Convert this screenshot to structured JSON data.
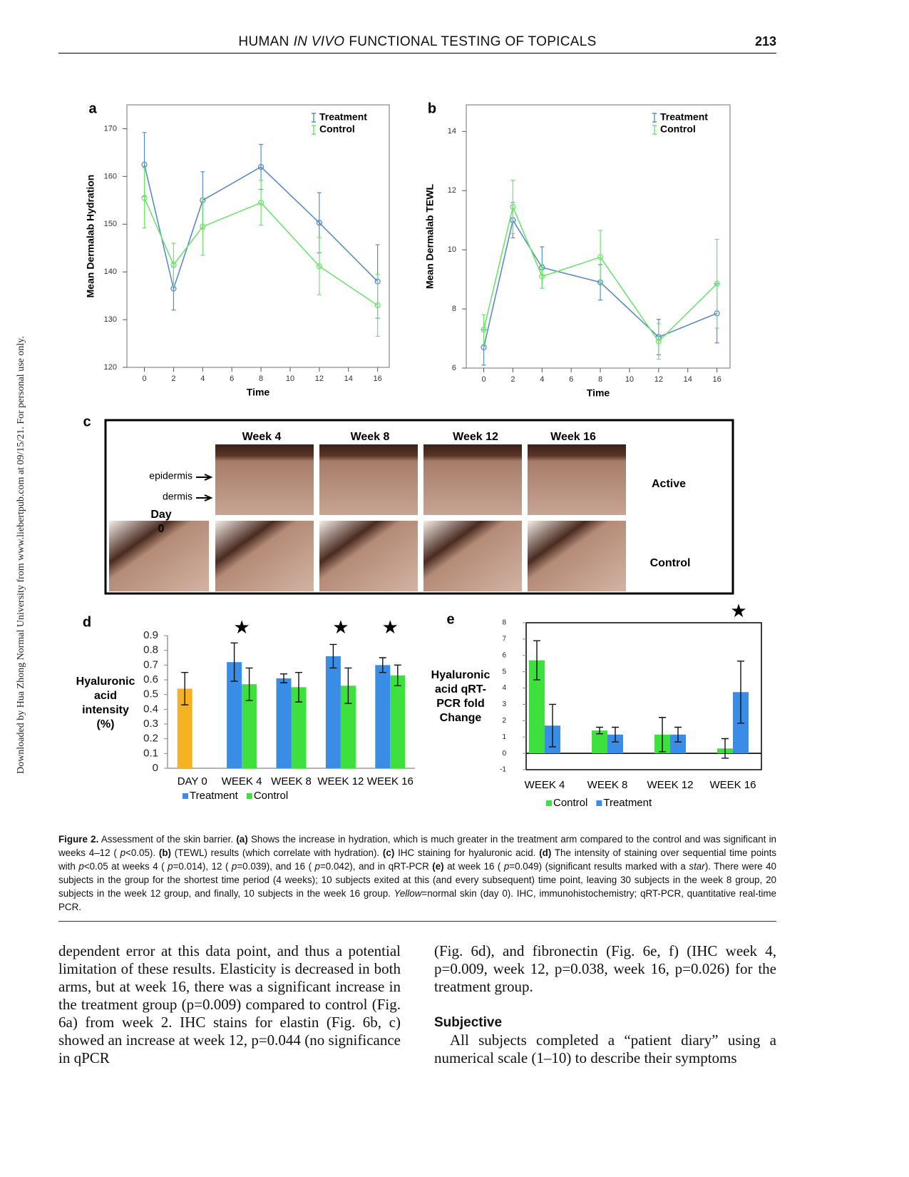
{
  "header": {
    "title_parts": [
      "HUMAN",
      "IN VIVO",
      "FUNCTIONAL TESTING OF TOPICALS"
    ],
    "page_number": "213"
  },
  "side_note": "Downloaded by Hua Zhong Normal University from www.liebertpub.com at 09/15/21. For personal use only.",
  "chart_data": [
    {
      "type": "line",
      "panel": "a",
      "xlabel": "Time",
      "ylabel": "Mean Dermalab Hydration",
      "x": [
        0,
        2,
        4,
        8,
        12,
        16
      ],
      "xlim": [
        -1.2,
        16.8
      ],
      "xticks": [
        0,
        2,
        4,
        6,
        8,
        10,
        12,
        14,
        16
      ],
      "ylim": [
        120,
        175
      ],
      "yticks": [
        120,
        130,
        140,
        150,
        160,
        170
      ],
      "legend": "upper right",
      "series": [
        {
          "name": "Treatment",
          "color": "#5b8cc6",
          "values": [
            162.5,
            136.5,
            155,
            162,
            150.3,
            138
          ],
          "errors": [
            6.7,
            4.5,
            6,
            4.7,
            6.3,
            7.7
          ]
        },
        {
          "name": "Control",
          "color": "#6ee36e",
          "values": [
            155.5,
            141.5,
            149.5,
            154.5,
            141.2,
            133
          ],
          "errors": [
            6.3,
            4.5,
            6,
            4.7,
            6,
            6.5
          ]
        }
      ]
    },
    {
      "type": "line",
      "panel": "b",
      "xlabel": "Time",
      "ylabel": "Mean Dermalab TEWL",
      "x": [
        0,
        2,
        4,
        8,
        12,
        16
      ],
      "xlim": [
        -1.2,
        16.9
      ],
      "xticks": [
        0,
        2,
        4,
        6,
        8,
        10,
        12,
        14,
        16
      ],
      "ylim": [
        6,
        14.9
      ],
      "yticks": [
        6,
        8,
        10,
        12,
        14
      ],
      "legend": "upper right",
      "series": [
        {
          "name": "Treatment",
          "color": "#5b8cc6",
          "values": [
            6.7,
            11.0,
            9.4,
            8.9,
            7.05,
            7.85
          ],
          "errors": [
            0.6,
            0.6,
            0.7,
            0.6,
            0.6,
            1.0
          ]
        },
        {
          "name": "Control",
          "color": "#6ee36e",
          "values": [
            7.3,
            11.45,
            9.1,
            9.75,
            6.9,
            8.85
          ],
          "errors": [
            0.5,
            0.9,
            0.4,
            0.9,
            0.6,
            1.5
          ]
        }
      ]
    },
    {
      "type": "bar",
      "panel": "d",
      "ylabel_lines": [
        "Hyaluronic",
        "acid",
        "intensity",
        "(%)"
      ],
      "categories": [
        "DAY 0",
        "WEEK 4",
        "WEEK 8",
        "WEEK 12",
        "WEEK 16"
      ],
      "ylim": [
        0,
        0.9
      ],
      "yticks": [
        0,
        0.1,
        0.2,
        0.3,
        0.4,
        0.5,
        0.6,
        0.7,
        0.8,
        0.9
      ],
      "legend": "bottom",
      "significance_marker": "★",
      "significant": [
        false,
        true,
        false,
        true,
        true
      ],
      "series": [
        {
          "name": "Treatment",
          "color": "#3a8de6",
          "values": [
            null,
            0.72,
            0.61,
            0.76,
            0.7
          ],
          "errors": [
            null,
            0.13,
            0.03,
            0.08,
            0.05
          ]
        },
        {
          "name": "Control",
          "color": "#3ee03e",
          "values": [
            null,
            0.57,
            0.55,
            0.56,
            0.63
          ],
          "errors": [
            null,
            0.11,
            0.1,
            0.12,
            0.07
          ]
        },
        {
          "color": "#f5b324",
          "values": [
            0.54,
            null,
            null,
            null,
            null
          ],
          "errors": [
            0.11,
            null,
            null,
            null,
            null
          ]
        }
      ]
    },
    {
      "type": "bar",
      "panel": "e",
      "ylabel_lines": [
        "Hyaluronic",
        "acid qRT-",
        "PCR fold",
        "Change"
      ],
      "categories": [
        "WEEK 4",
        "WEEK 8",
        "WEEK 12",
        "WEEK 16"
      ],
      "ylim": [
        -1,
        8
      ],
      "yticks": [
        -1,
        0,
        1,
        2,
        3,
        4,
        5,
        6,
        7,
        8
      ],
      "legend": "bottom",
      "significance_marker": "★",
      "significant": [
        false,
        false,
        false,
        true
      ],
      "series": [
        {
          "name": "Control",
          "color": "#3ee03e",
          "values": [
            5.7,
            1.4,
            1.15,
            0.3
          ],
          "errors": [
            1.2,
            0.2,
            1.05,
            0.6
          ]
        },
        {
          "name": "Treatment",
          "color": "#3a8de6",
          "values": [
            1.7,
            1.15,
            1.15,
            3.75
          ],
          "errors": [
            1.3,
            0.45,
            0.45,
            1.9
          ]
        }
      ]
    }
  ],
  "histology": {
    "panel": "c",
    "columns": [
      "Week 4",
      "Week 8",
      "Week 12",
      "Week 16"
    ],
    "rows": [
      "Active",
      "Control"
    ],
    "epidermis": "epidermis",
    "dermis": "dermis",
    "day_lines": [
      "Day",
      "0"
    ]
  },
  "caption": {
    "segments": [
      {
        "text": "Figure 2.",
        "style": "bold"
      },
      {
        "text": " Assessment of the skin barrier. "
      },
      {
        "text": "(a)",
        "style": "bold"
      },
      {
        "text": " Shows the increase in hydration, which is much greater in the treatment arm compared to the control and was significant in weeks 4–12 ( "
      },
      {
        "text": "p",
        "style": "italic"
      },
      {
        "text": "<0.05). "
      },
      {
        "text": "(b)",
        "style": "bold"
      },
      {
        "text": " (TEWL) results (which correlate with hydration). "
      },
      {
        "text": "(c)",
        "style": "bold"
      },
      {
        "text": " IHC staining for hyaluronic acid. "
      },
      {
        "text": "(d)",
        "style": "bold"
      },
      {
        "text": " The intensity of staining over sequential time points with "
      },
      {
        "text": "p",
        "style": "italic"
      },
      {
        "text": "<0.05 at weeks 4 ( "
      },
      {
        "text": "p",
        "style": "italic"
      },
      {
        "text": "=0.014), 12 ( "
      },
      {
        "text": "p",
        "style": "italic"
      },
      {
        "text": "=0.039), and 16 ( "
      },
      {
        "text": "p",
        "style": "italic"
      },
      {
        "text": "=0.042), and in qRT-PCR "
      },
      {
        "text": "(e)",
        "style": "bold"
      },
      {
        "text": " at week 16 ( "
      },
      {
        "text": "p",
        "style": "italic"
      },
      {
        "text": "=0.049) (significant results marked with a "
      },
      {
        "text": "star",
        "style": "italic"
      },
      {
        "text": "). There were 40 subjects in the group for the shortest time period (4 weeks); 10 subjects exited at this (and every subsequent) time point, leaving 30 subjects in the week 8 group, 20 subjects in the week 12 group, and finally, 10 subjects in the week 16 group. "
      },
      {
        "text": "Yellow",
        "style": "italic"
      },
      {
        "text": "=normal skin (day 0). IHC, immunohistochemistry; qRT-PCR, quantitative real-time PCR."
      }
    ]
  },
  "body": {
    "left": "dependent error at this data point, and thus a potential limitation of these results. Elasticity is decreased in both arms, but at week 16, there was a significant increase in the treatment group (p=0.009) compared to control (Fig. 6a) from week 2. IHC stains for elastin (Fig. 6b, c) showed an increase at week 12, p=0.044 (no significance in qPCR",
    "right_paragraph": "(Fig. 6d), and fibronectin (Fig. 6e, f) (IHC week 4, p=0.009, week 12, p=0.038, week 16, p=0.026) for the treatment group.",
    "heading": "Subjective",
    "right_paragraph_2": "All subjects completed a “patient diary” using a numerical scale (1–10) to describe their symptoms"
  }
}
